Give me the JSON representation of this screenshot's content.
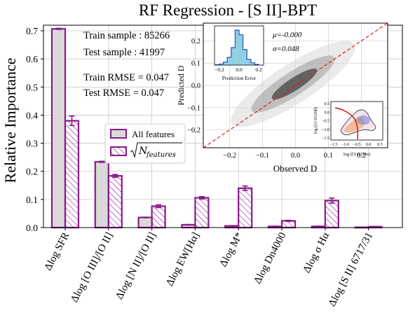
{
  "chart_data": [
    {
      "type": "bar",
      "title": "RF Regression - [S II]-BPT",
      "ylabel": "Relative Importance",
      "ylim": [
        0,
        0.72
      ],
      "yticks": [
        0.0,
        0.1,
        0.2,
        0.3,
        0.4,
        0.5,
        0.6,
        0.7
      ],
      "ytick_labels": [
        "0.0",
        "0.1",
        "0.2",
        "0.3",
        "0.4",
        "0.5",
        "0.6",
        "0.7"
      ],
      "grid": true,
      "categories": [
        "Δlog SFR",
        "Δlog [O III]/[O II]",
        "Δlog [N II]/[O II]",
        "Δlog EW[Hα]",
        "Δlog M*",
        "Δlog Dn4000",
        "Δlog σ Hα",
        "Δlog [S II] 6717/31"
      ],
      "series": [
        {
          "name": "All features",
          "values": [
            0.707,
            0.234,
            0.036,
            0.01,
            0.006,
            0.004,
            0.004,
            0.001
          ],
          "errors": [
            0.002,
            0.002,
            0.001,
            0.001,
            0.001,
            0.001,
            0.001,
            0.0005
          ],
          "color": "#d9d9d9",
          "edge": "#8a1a8a"
        },
        {
          "name": "√N_features",
          "values": [
            0.38,
            0.184,
            0.076,
            0.106,
            0.14,
            0.024,
            0.096,
            0.003
          ],
          "errors": [
            0.017,
            0.005,
            0.005,
            0.004,
            0.008,
            0.002,
            0.009,
            0.001
          ],
          "color": "#ffffff",
          "edge": "#8a1a8a",
          "hatch": true
        }
      ],
      "legend": {
        "placement": "center-left",
        "entries": [
          "All features",
          "N"
        ],
        "sub": "features"
      },
      "annotations": [
        "Train sample : 85266",
        "Test sample : 41997",
        "Train RMSE = 0.047",
        "Test RMSE = 0.047"
      ]
    },
    {
      "type": "scatter",
      "role": "inset",
      "xlabel": "Observed D",
      "ylabel": "Predicted D",
      "xlim": [
        -0.28,
        0.28
      ],
      "ylim": [
        -0.28,
        0.28
      ],
      "xtick_labels": [
        "−0.2",
        "−0.1",
        "0.0",
        "0.1",
        "0.2"
      ],
      "ytick_labels": [
        "−0.2",
        "−0.1",
        "0.0",
        "0.1",
        "0.2"
      ],
      "reference_line": "y = x",
      "reference_color": "#e02020",
      "stats": {
        "mu": "μ=-0.000",
        "sigma": "σ=0.048"
      }
    },
    {
      "type": "bar",
      "role": "histogram-inset",
      "xlabel": "Prediction Error",
      "xtick_labels": [
        "−0.2",
        "0.0",
        "0.2"
      ],
      "xlim": [
        -0.25,
        0.25
      ],
      "bins": [
        -0.22,
        -0.18,
        -0.14,
        -0.1,
        -0.06,
        -0.02,
        0.02,
        0.06,
        0.1,
        0.14,
        0.18
      ],
      "counts": [
        1,
        3,
        8,
        20,
        45,
        90,
        78,
        40,
        15,
        6,
        2
      ],
      "color": "#8fd0e0",
      "edge": "#2b50c8"
    },
    {
      "type": "line",
      "role": "bpt-inset",
      "xlabel": "log ([S II]/Hα)",
      "ylabel": "log ([O III]/Hβ)",
      "xtick_labels": [
        "−1.5",
        "−1.0",
        "−0.5",
        "0.0",
        "0.5"
      ],
      "ytick_labels": [
        "−1.5",
        "−1.0",
        "−0.5",
        "0.0",
        "0.5"
      ]
    }
  ]
}
